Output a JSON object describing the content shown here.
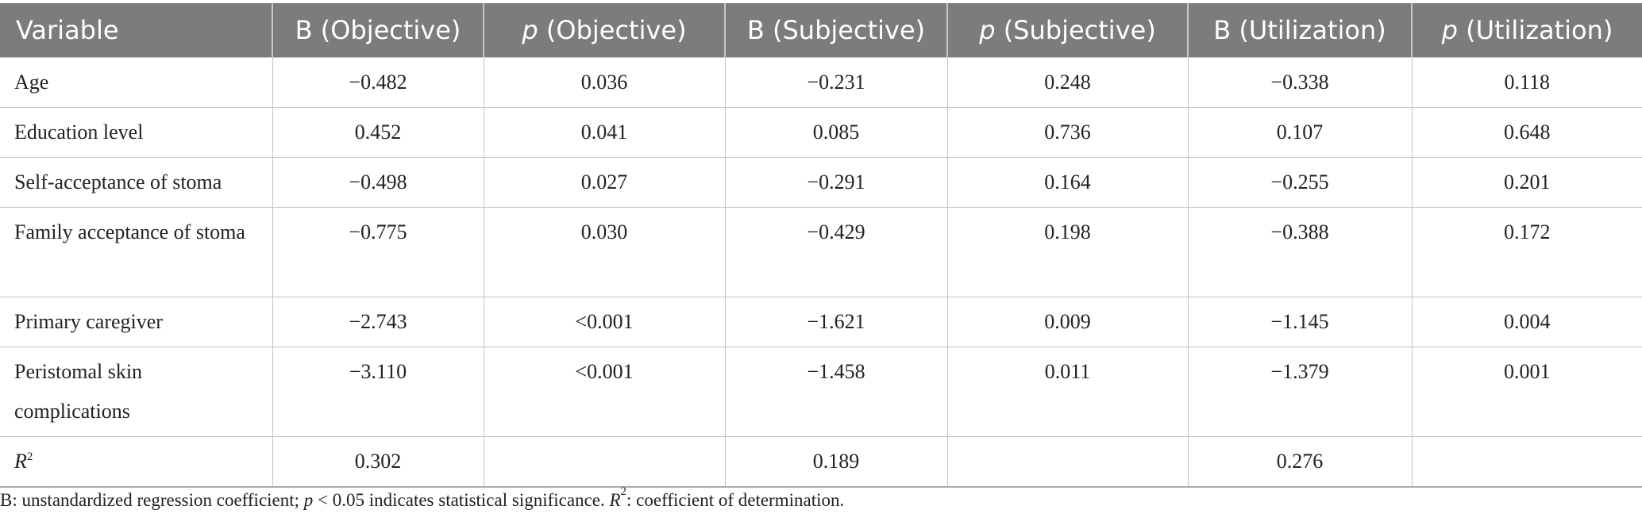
{
  "table": {
    "headers": [
      {
        "prefix": "",
        "text": "Variable"
      },
      {
        "prefix": "",
        "text": "B (Objective)"
      },
      {
        "prefix": "p",
        "text": " (Objective)"
      },
      {
        "prefix": "",
        "text": "B (Subjective)"
      },
      {
        "prefix": "p",
        "text": " (Subjective)"
      },
      {
        "prefix": "",
        "text": "B (Utilization)"
      },
      {
        "prefix": "p",
        "text": " (Utilization)"
      }
    ],
    "rows": [
      {
        "variable": "Age",
        "values": [
          "−0.482",
          "0.036",
          "−0.231",
          "0.248",
          "−0.338",
          "0.118"
        ]
      },
      {
        "variable": "Education level",
        "values": [
          "0.452",
          "0.041",
          "0.085",
          "0.736",
          "0.107",
          "0.648"
        ]
      },
      {
        "variable": "Self-acceptance of stoma",
        "values": [
          "−0.498",
          "0.027",
          "−0.291",
          "0.164",
          "−0.255",
          "0.201"
        ]
      },
      {
        "variable": "Family acceptance of stoma",
        "values": [
          "−0.775",
          "0.030",
          "−0.429",
          "0.198",
          "−0.388",
          "0.172"
        ]
      },
      {
        "variable": "Primary caregiver",
        "values": [
          "−2.743",
          "<0.001",
          "−1.621",
          "0.009",
          "−1.145",
          "0.004"
        ]
      },
      {
        "variable": "Peristomal skin complications",
        "values": [
          "−3.110",
          "<0.001",
          "−1.458",
          "0.011",
          "−1.379",
          "0.001"
        ]
      }
    ],
    "r2_row": {
      "label_base": "R",
      "label_sup": "2",
      "values": [
        "0.302",
        "",
        "0.189",
        "",
        "0.276",
        ""
      ]
    }
  },
  "footnote": {
    "part1": "B: unstandardized regression coefficient; ",
    "p": "p",
    "part2": " < 0.05 indicates statistical significance. ",
    "r": "R",
    "sup": "2",
    "part3": ": coefficient of determination."
  }
}
